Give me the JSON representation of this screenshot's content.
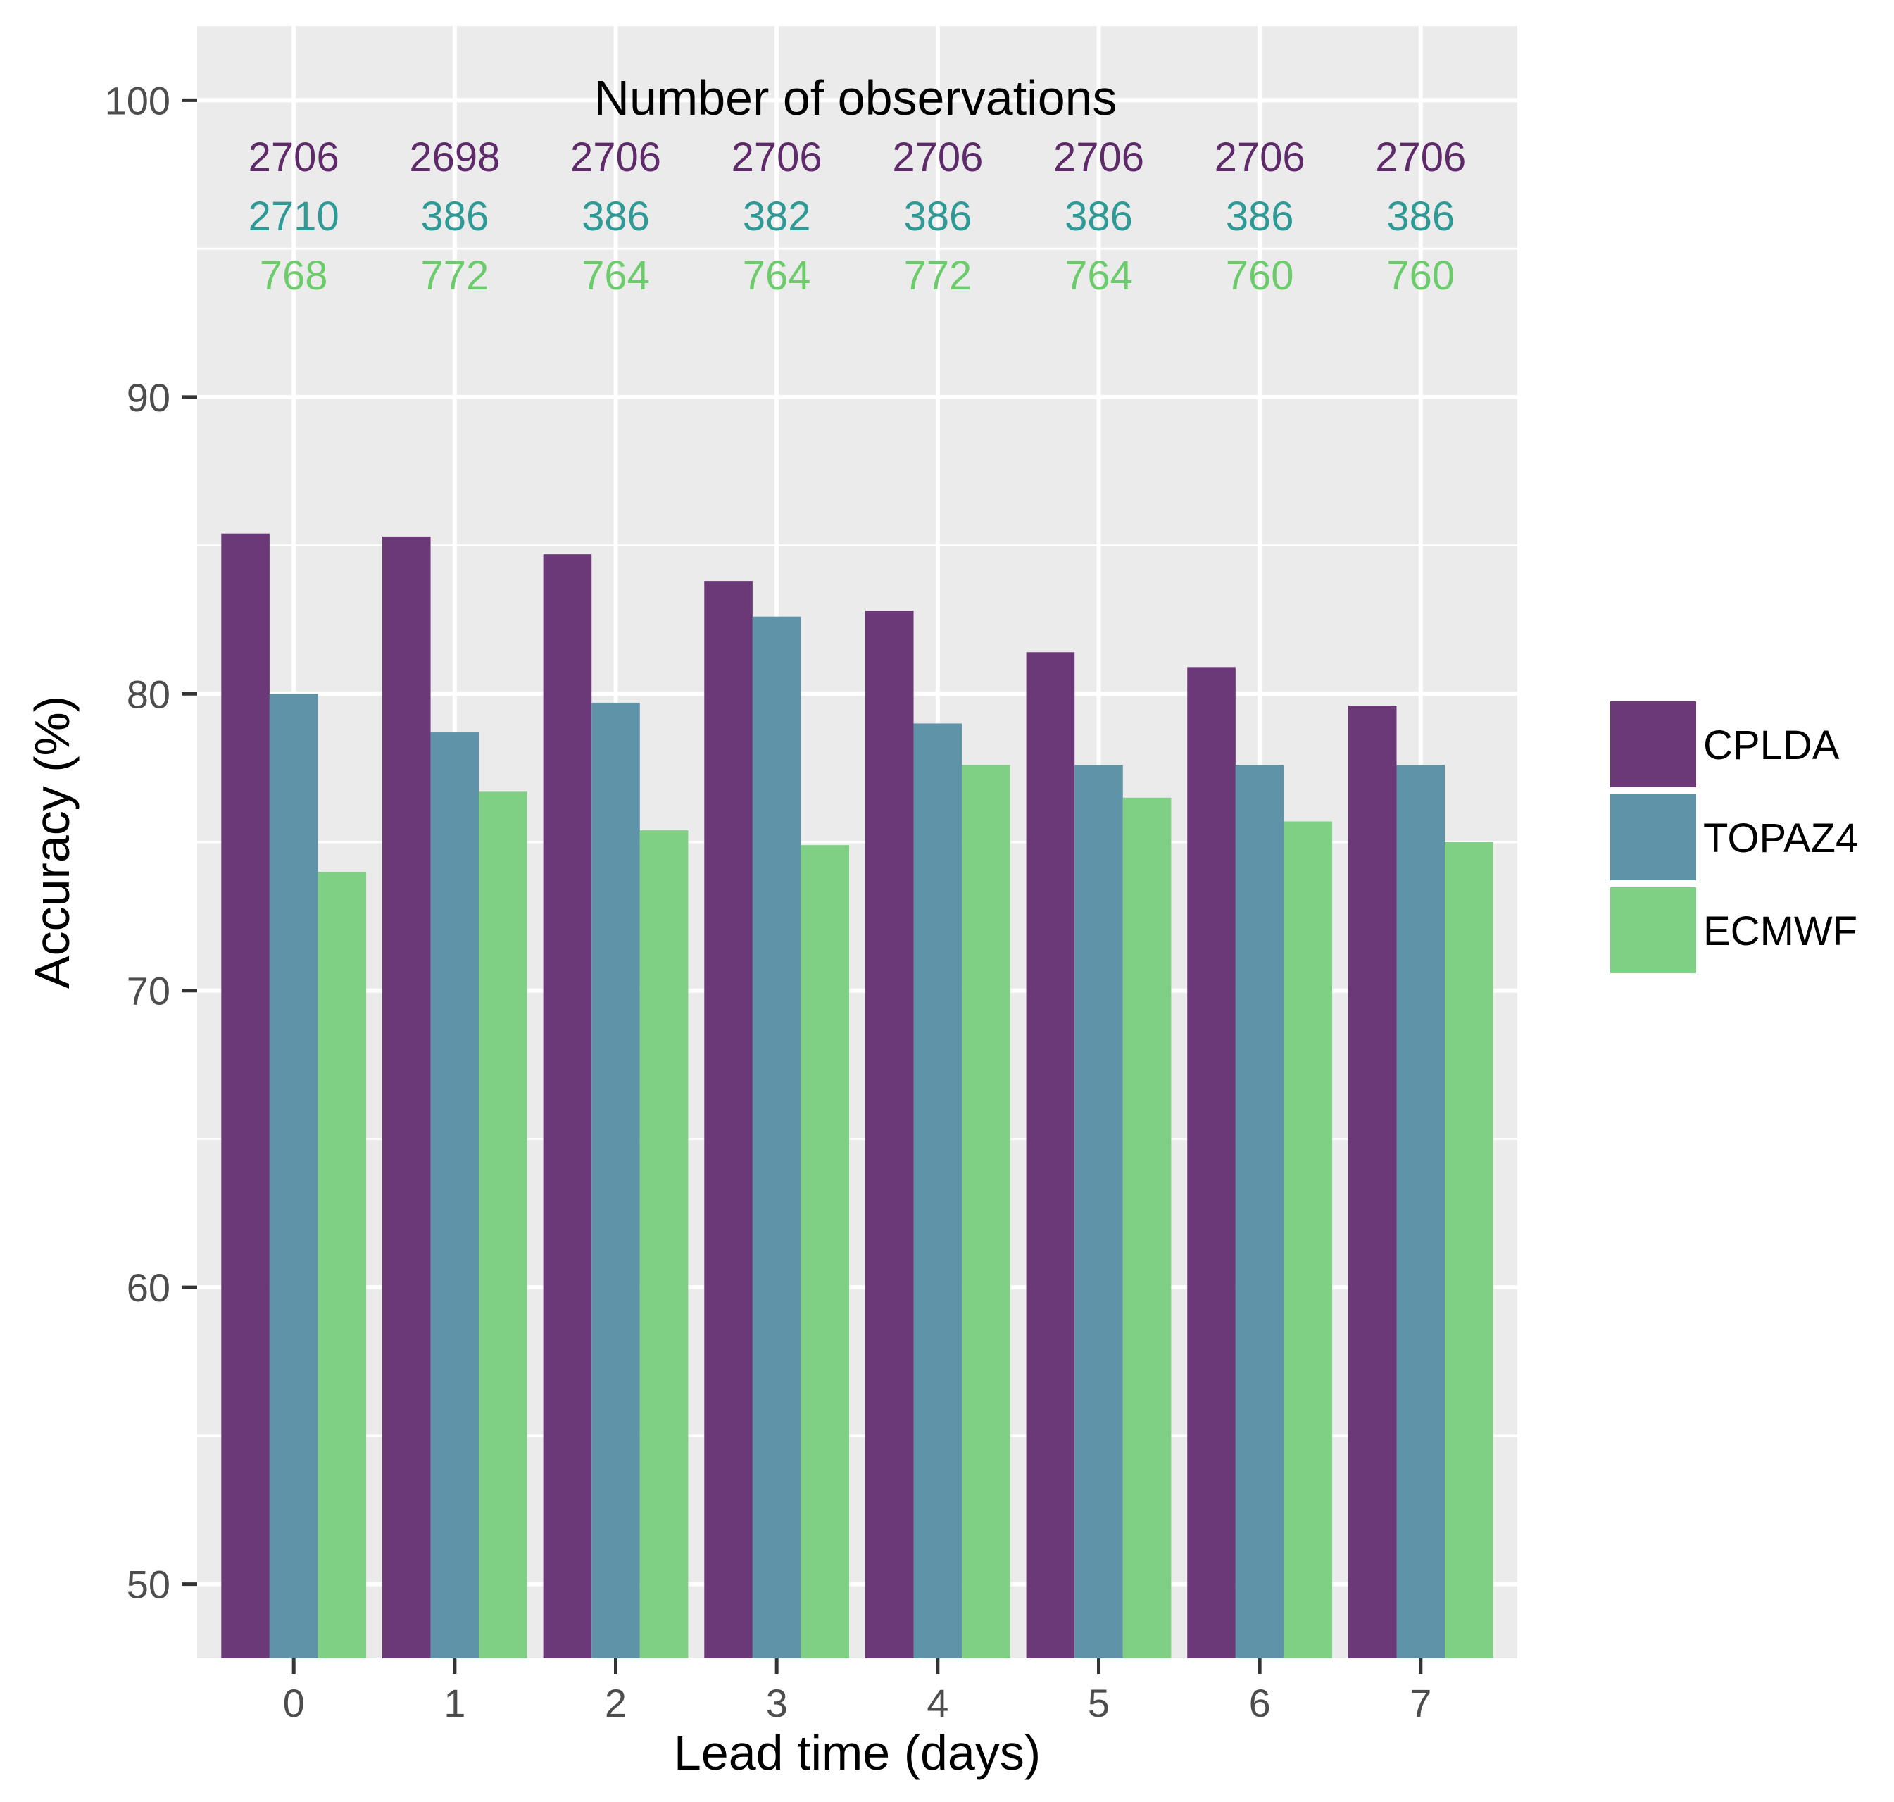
{
  "chart_data": {
    "type": "bar",
    "xlabel": "Lead time (days)",
    "ylabel": "Accuracy (%)",
    "ylim": [
      47.5,
      102.5
    ],
    "y_ticks": [
      50,
      60,
      70,
      80,
      90,
      100
    ],
    "categories": [
      "0",
      "1",
      "2",
      "3",
      "4",
      "5",
      "6",
      "7"
    ],
    "series": [
      {
        "name": "CPLDA",
        "color": "#6b3878",
        "values": [
          85.4,
          85.3,
          84.7,
          83.8,
          82.8,
          81.4,
          80.9,
          79.6
        ]
      },
      {
        "name": "TOPAZ4",
        "color": "#5f93a8",
        "values": [
          80.0,
          78.7,
          79.7,
          82.6,
          79.0,
          77.6,
          77.6,
          77.6
        ]
      },
      {
        "name": "ECMWF",
        "color": "#7fd084",
        "values": [
          74.0,
          76.7,
          75.4,
          74.9,
          77.6,
          76.5,
          75.7,
          75.0
        ]
      }
    ],
    "annotation": {
      "title": "Number of observations",
      "rows": [
        {
          "series": "CPLDA",
          "color": "#5e2a6a",
          "values": [
            "2706",
            "2698",
            "2706",
            "2706",
            "2706",
            "2706",
            "2706",
            "2706"
          ]
        },
        {
          "series": "TOPAZ4",
          "color": "#2d9a96",
          "values": [
            "2710",
            "386",
            "386",
            "382",
            "386",
            "386",
            "386",
            "386"
          ]
        },
        {
          "series": "ECMWF",
          "color": "#6ccc6c",
          "values": [
            "768",
            "772",
            "764",
            "764",
            "772",
            "764",
            "760",
            "760"
          ]
        }
      ]
    },
    "legend": {
      "position": "right",
      "entries": [
        "CPLDA",
        "TOPAZ4",
        "ECMWF"
      ]
    },
    "grid": true,
    "panel_background": "#ebebeb",
    "grid_color": "#ffffff"
  }
}
